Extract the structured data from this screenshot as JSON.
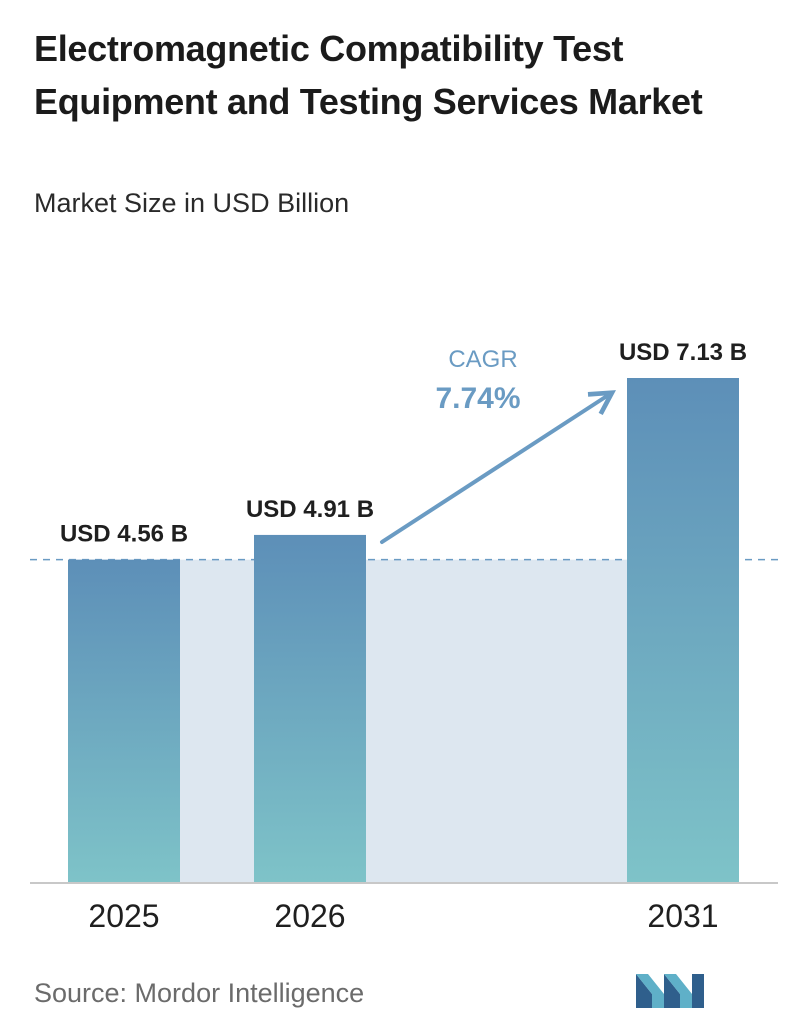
{
  "header": {
    "title": "Electromagnetic Compatibility Test Equipment and Testing Services Market",
    "subtitle": "Market Size in USD Billion"
  },
  "footer": {
    "source": "Source:  Mordor Intelligence",
    "logo_icon": "mordor-intelligence-logo-icon"
  },
  "cagr": {
    "label": "CAGR",
    "value": "7.74%"
  },
  "colors": {
    "bar_top": "#5d8fb8",
    "bar_bottom": "#7ec3c8",
    "band_fill": "#dde7f0",
    "arrow": "#6a9bc3",
    "cagr_text": "#6a9bc3",
    "reference_line": "#6a9bc3",
    "axis": "#c8c8c8"
  },
  "chart_data": {
    "type": "bar",
    "categories": [
      "2025",
      "2026",
      "2031"
    ],
    "values": [
      4.56,
      4.91,
      7.13
    ],
    "value_labels": [
      "USD 4.56 B",
      "USD 4.91 B",
      "USD 7.13 B"
    ],
    "title": "Electromagnetic Compatibility Test Equipment and Testing Services Market",
    "subtitle": "Market Size in USD Billion",
    "xlabel": "",
    "ylabel": "",
    "ylim": [
      0,
      7.13
    ],
    "grid": false,
    "legend": "none",
    "reference_line": 4.56,
    "annotation": "CAGR 7.74%"
  }
}
